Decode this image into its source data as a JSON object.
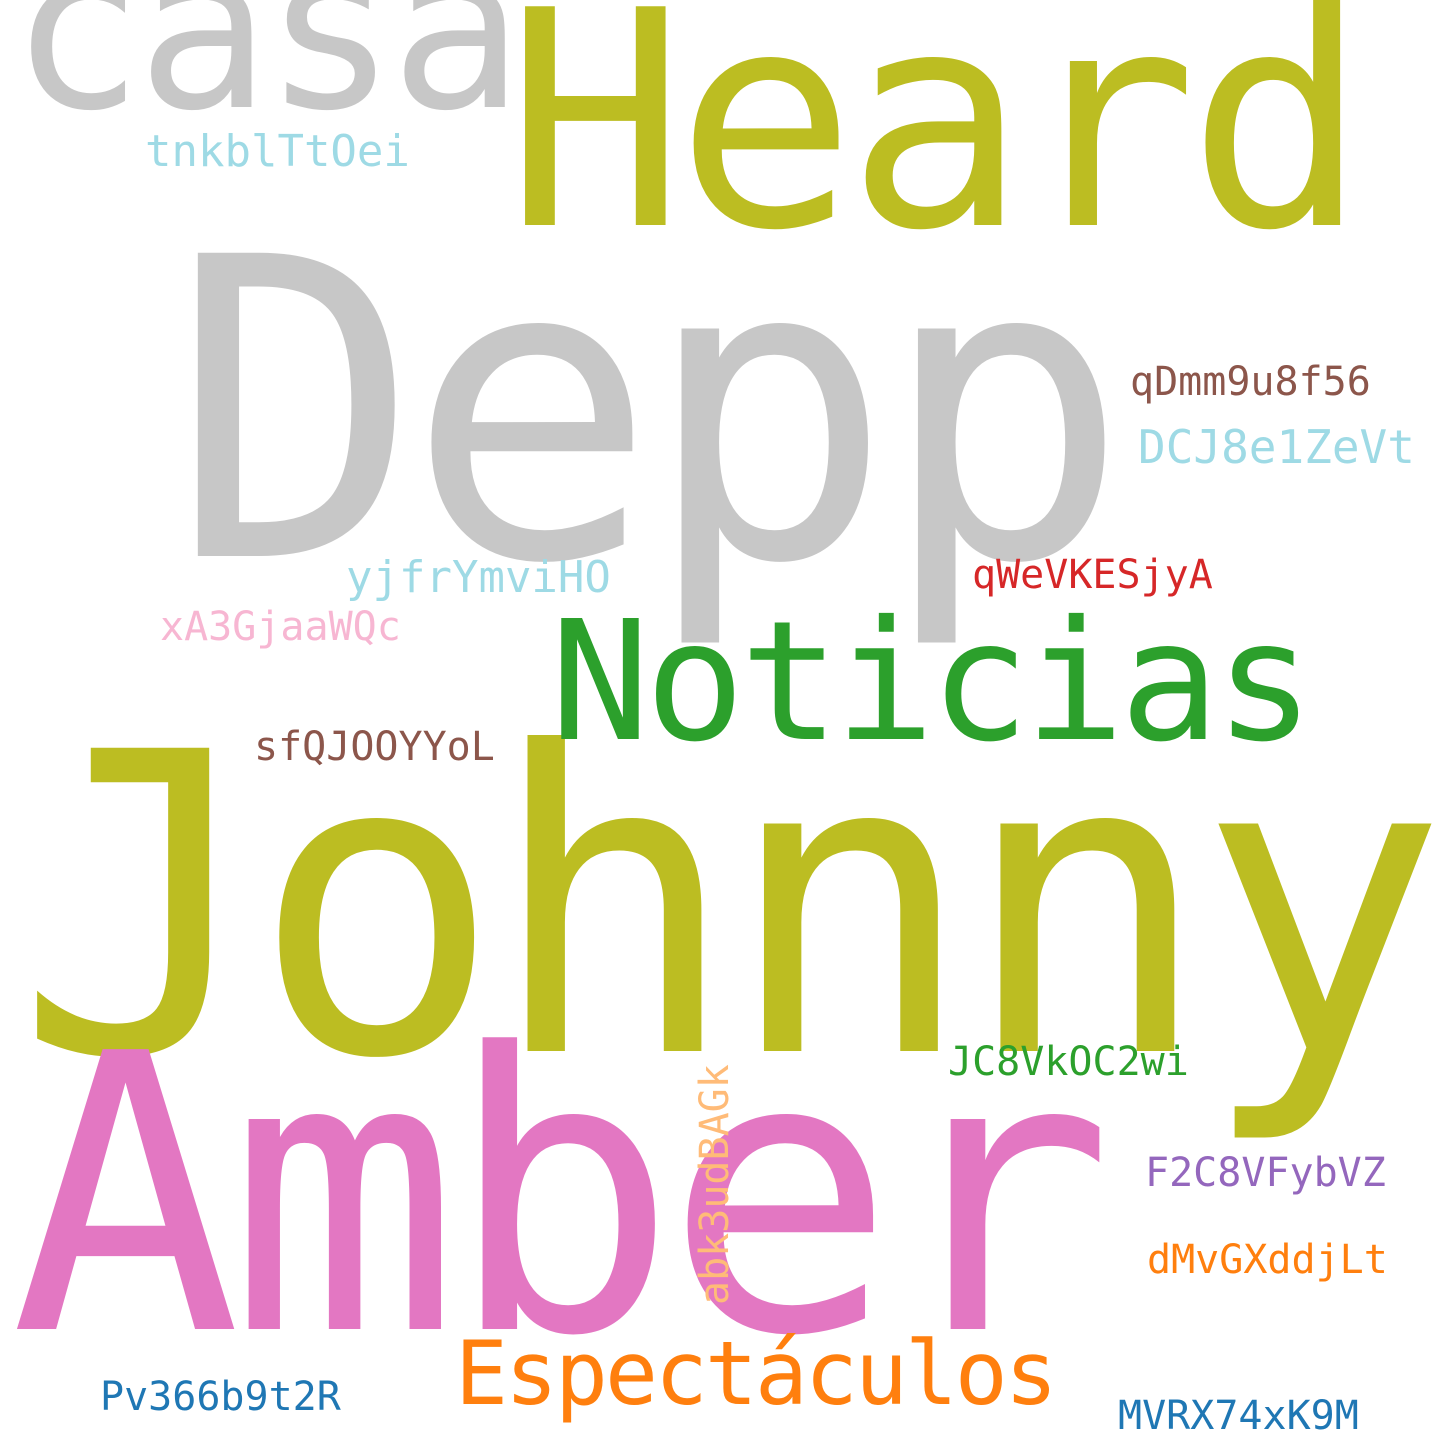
{
  "words": [
    {
      "text": "Johnny",
      "color": "#bcbd22"
    },
    {
      "text": "Amber",
      "color": "#e377c2"
    },
    {
      "text": "Depp",
      "color": "#c7c7c7"
    },
    {
      "text": "Heard",
      "color": "#bcbd22"
    },
    {
      "text": "casa",
      "color": "#c7c7c7"
    },
    {
      "text": "Noticias",
      "color": "#2ca02c"
    },
    {
      "text": "Espectáculos",
      "color": "#ff7f0e"
    },
    {
      "text": "tnkblTtOei",
      "color": "#9edae5"
    },
    {
      "text": "qDmm9u8f56",
      "color": "#8c564b"
    },
    {
      "text": "DCJ8e1ZeVt",
      "color": "#9edae5"
    },
    {
      "text": "yjfrYmviHO",
      "color": "#9edae5"
    },
    {
      "text": "qWeVKESjyA",
      "color": "#d62728"
    },
    {
      "text": "xA3GjaaWQc",
      "color": "#f7b6d2"
    },
    {
      "text": "sfQJOOYYoL",
      "color": "#8c564b"
    },
    {
      "text": "JC8VkOC2wi",
      "color": "#2ca02c"
    },
    {
      "text": "F2C8VFybVZ",
      "color": "#9467bd"
    },
    {
      "text": "dMvGXddjLt",
      "color": "#ff7f0e"
    },
    {
      "text": "Pv366b9t2R",
      "color": "#1f77b4"
    },
    {
      "text": "MVRX74xK9M",
      "color": "#1f77b4"
    },
    {
      "text": "abk3udBAGk",
      "color": "#ffbb78"
    }
  ]
}
